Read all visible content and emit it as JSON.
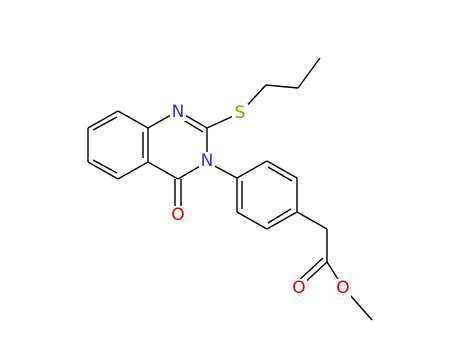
{
  "atoms": {
    "n1": "N",
    "n3": "N",
    "s": "S",
    "o_keto": "O",
    "o_carbonyl": "O",
    "o_ester": "O"
  }
}
